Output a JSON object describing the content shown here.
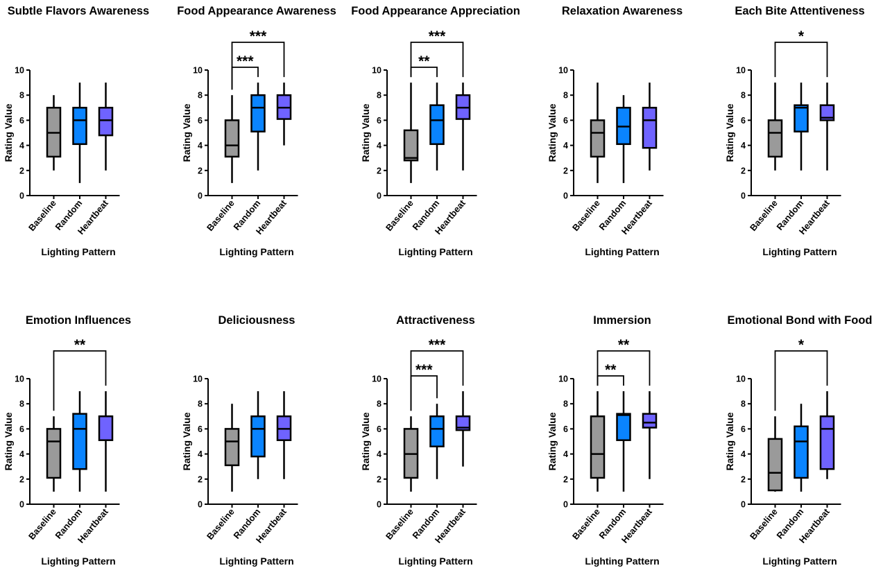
{
  "colors": {
    "Baseline": "#9a9a9a",
    "Random": "#0a84ff",
    "Heartbeat": "#6f63ff"
  },
  "chart_data": [
    {
      "type": "box",
      "title": "Subtle Flavors Awareness",
      "xlabel": "Lighting Pattern",
      "ylabel": "Rating Value",
      "ylim": [
        0,
        10
      ],
      "yticks": [
        "0",
        "2",
        "4",
        "6",
        "8",
        "10"
      ],
      "categories": [
        "Baseline",
        "Random",
        "Heartbeat"
      ],
      "boxes": [
        {
          "min": 2,
          "q1": 3.1,
          "median": 5,
          "q3": 7,
          "max": 8
        },
        {
          "min": 1,
          "q1": 4.1,
          "median": 6,
          "q3": 7,
          "max": 9
        },
        {
          "min": 2,
          "q1": 4.8,
          "median": 6,
          "q3": 7,
          "max": 9
        }
      ],
      "significance": []
    },
    {
      "type": "box",
      "title": "Food Appearance Awareness",
      "xlabel": "Lighting Pattern",
      "ylabel": "Rating Value",
      "ylim": [
        0,
        10
      ],
      "yticks": [
        "0",
        "2",
        "4",
        "6",
        "8",
        "10"
      ],
      "categories": [
        "Baseline",
        "Random",
        "Heartbeat"
      ],
      "boxes": [
        {
          "min": 1,
          "q1": 3.1,
          "median": 4,
          "q3": 6,
          "max": 8
        },
        {
          "min": 2,
          "q1": 5.1,
          "median": 7,
          "q3": 8,
          "max": 9
        },
        {
          "min": 4,
          "q1": 6.1,
          "median": 7,
          "q3": 8,
          "max": 9
        }
      ],
      "significance": [
        {
          "from": 0,
          "to": 1,
          "label": "***"
        },
        {
          "from": 0,
          "to": 2,
          "label": "***"
        }
      ]
    },
    {
      "type": "box",
      "title": "Food Appearance Appreciation",
      "xlabel": "Lighting Pattern",
      "ylabel": "Rating Value",
      "ylim": [
        0,
        10
      ],
      "yticks": [
        "0",
        "2",
        "4",
        "6",
        "8",
        "10"
      ],
      "categories": [
        "Baseline",
        "Random",
        "Heartbeat"
      ],
      "boxes": [
        {
          "min": 1,
          "q1": 2.8,
          "median": 3,
          "q3": 5.2,
          "max": 9
        },
        {
          "min": 2,
          "q1": 4.1,
          "median": 6,
          "q3": 7.2,
          "max": 9
        },
        {
          "min": 2,
          "q1": 6.1,
          "median": 7,
          "q3": 8,
          "max": 9
        }
      ],
      "significance": [
        {
          "from": 0,
          "to": 1,
          "label": "**"
        },
        {
          "from": 0,
          "to": 2,
          "label": "***"
        }
      ]
    },
    {
      "type": "box",
      "title": "Relaxation Awareness",
      "xlabel": "Lighting Pattern",
      "ylabel": "Rating Value",
      "ylim": [
        0,
        10
      ],
      "yticks": [
        "0",
        "2",
        "4",
        "6",
        "8",
        "10"
      ],
      "categories": [
        "Baseline",
        "Random",
        "Heartbeat"
      ],
      "boxes": [
        {
          "min": 1,
          "q1": 3.1,
          "median": 5,
          "q3": 6,
          "max": 9
        },
        {
          "min": 1,
          "q1": 4.1,
          "median": 5.5,
          "q3": 7,
          "max": 8
        },
        {
          "min": 2,
          "q1": 3.8,
          "median": 6,
          "q3": 7,
          "max": 9
        }
      ],
      "significance": []
    },
    {
      "type": "box",
      "title": "Each Bite Attentiveness",
      "xlabel": "Lighting Pattern",
      "ylabel": "Rating Value",
      "ylim": [
        0,
        10
      ],
      "yticks": [
        "0",
        "2",
        "4",
        "6",
        "8",
        "10"
      ],
      "categories": [
        "Baseline",
        "Random",
        "Heartbeat"
      ],
      "boxes": [
        {
          "min": 2,
          "q1": 3.1,
          "median": 5,
          "q3": 6,
          "max": 9
        },
        {
          "min": 2,
          "q1": 5.1,
          "median": 7,
          "q3": 7.2,
          "max": 9
        },
        {
          "min": 2,
          "q1": 6,
          "median": 6.2,
          "q3": 7.2,
          "max": 9
        }
      ],
      "significance": [
        {
          "from": 0,
          "to": 2,
          "label": "*"
        }
      ]
    },
    {
      "type": "box",
      "title": "Emotion Influences",
      "xlabel": "Lighting Pattern",
      "ylabel": "Rating Value",
      "ylim": [
        0,
        10
      ],
      "yticks": [
        "0",
        "2",
        "4",
        "6",
        "8",
        "10"
      ],
      "categories": [
        "Baseline",
        "Random",
        "Heartbeat"
      ],
      "boxes": [
        {
          "min": 1,
          "q1": 2.1,
          "median": 5,
          "q3": 6,
          "max": 7
        },
        {
          "min": 1,
          "q1": 2.8,
          "median": 6,
          "q3": 7.2,
          "max": 9
        },
        {
          "min": 1,
          "q1": 5.1,
          "median": 7,
          "q3": 7,
          "max": 9
        }
      ],
      "significance": [
        {
          "from": 0,
          "to": 2,
          "label": "**"
        }
      ]
    },
    {
      "type": "box",
      "title": "Deliciousness",
      "xlabel": "Lighting Pattern",
      "ylabel": "Rating Value",
      "ylim": [
        0,
        10
      ],
      "yticks": [
        "0",
        "2",
        "4",
        "6",
        "8",
        "10"
      ],
      "categories": [
        "Baseline",
        "Random",
        "Heartbeat"
      ],
      "boxes": [
        {
          "min": 1,
          "q1": 3.1,
          "median": 5,
          "q3": 6,
          "max": 8
        },
        {
          "min": 2,
          "q1": 3.8,
          "median": 6,
          "q3": 7,
          "max": 9
        },
        {
          "min": 2,
          "q1": 5.1,
          "median": 6,
          "q3": 7,
          "max": 9
        }
      ],
      "significance": []
    },
    {
      "type": "box",
      "title": "Attractiveness",
      "xlabel": "Lighting Pattern",
      "ylabel": "Rating Value",
      "ylim": [
        0,
        10
      ],
      "yticks": [
        "0",
        "2",
        "4",
        "6",
        "8",
        "10"
      ],
      "categories": [
        "Baseline",
        "Random",
        "Heartbeat"
      ],
      "boxes": [
        {
          "min": 1,
          "q1": 2.1,
          "median": 4,
          "q3": 6,
          "max": 7
        },
        {
          "min": 2,
          "q1": 4.6,
          "median": 6,
          "q3": 7,
          "max": 8
        },
        {
          "min": 3,
          "q1": 5.9,
          "median": 6.1,
          "q3": 7,
          "max": 9
        }
      ],
      "significance": [
        {
          "from": 0,
          "to": 1,
          "label": "***"
        },
        {
          "from": 0,
          "to": 2,
          "label": "***"
        }
      ]
    },
    {
      "type": "box",
      "title": "Immersion",
      "xlabel": "Lighting Pattern",
      "ylabel": "Rating Value",
      "ylim": [
        0,
        10
      ],
      "yticks": [
        "0",
        "2",
        "4",
        "6",
        "8",
        "10"
      ],
      "categories": [
        "Baseline",
        "Random",
        "Heartbeat"
      ],
      "boxes": [
        {
          "min": 1,
          "q1": 2.1,
          "median": 4,
          "q3": 7,
          "max": 9
        },
        {
          "min": 1,
          "q1": 5.1,
          "median": 7.1,
          "q3": 7.2,
          "max": 9
        },
        {
          "min": 2,
          "q1": 6.1,
          "median": 6.5,
          "q3": 7.2,
          "max": 9
        }
      ],
      "significance": [
        {
          "from": 0,
          "to": 1,
          "label": "**"
        },
        {
          "from": 0,
          "to": 2,
          "label": "**"
        }
      ]
    },
    {
      "type": "box",
      "title": "Emotional Bond with Food",
      "xlabel": "Lighting Pattern",
      "ylabel": "Rating Value",
      "ylim": [
        0,
        10
      ],
      "yticks": [
        "0",
        "2",
        "4",
        "6",
        "8",
        "10"
      ],
      "categories": [
        "Baseline",
        "Random",
        "Heartbeat"
      ],
      "boxes": [
        {
          "min": 1,
          "q1": 1.1,
          "median": 2.5,
          "q3": 5.2,
          "max": 7
        },
        {
          "min": 1,
          "q1": 2.1,
          "median": 5,
          "q3": 6.2,
          "max": 8
        },
        {
          "min": 2,
          "q1": 2.8,
          "median": 6,
          "q3": 7,
          "max": 9
        }
      ],
      "significance": [
        {
          "from": 0,
          "to": 2,
          "label": "*"
        }
      ]
    }
  ]
}
